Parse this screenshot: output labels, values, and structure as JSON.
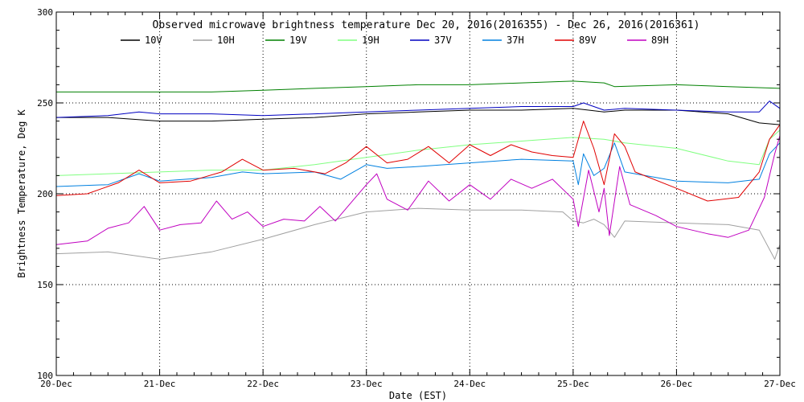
{
  "chart_data": {
    "type": "line",
    "title": "Observed microwave brightness temperature Dec 20, 2016(2016355) - Dec 26, 2016(2016361)",
    "xlabel": "Date (EST)",
    "ylabel": "Brightness Temperature, Deg K",
    "xlim": [
      0,
      7
    ],
    "ylim": [
      100,
      300
    ],
    "x_ticks": [
      {
        "value": 0,
        "label": "20-Dec"
      },
      {
        "value": 1,
        "label": "21-Dec"
      },
      {
        "value": 2,
        "label": "22-Dec"
      },
      {
        "value": 3,
        "label": "23-Dec"
      },
      {
        "value": 4,
        "label": "24-Dec"
      },
      {
        "value": 5,
        "label": "25-Dec"
      },
      {
        "value": 6,
        "label": "26-Dec"
      },
      {
        "value": 7,
        "label": "27-Dec"
      }
    ],
    "y_ticks": [
      {
        "value": 100,
        "label": "100"
      },
      {
        "value": 150,
        "label": "150"
      },
      {
        "value": 200,
        "label": "200"
      },
      {
        "value": 250,
        "label": "250"
      },
      {
        "value": 300,
        "label": "300"
      }
    ],
    "grid": "dotted",
    "legend_position": "top",
    "series": [
      {
        "name": "10V",
        "color": "#000000",
        "x": [
          0,
          0.5,
          1,
          1.5,
          2,
          2.5,
          3,
          3.5,
          4,
          4.5,
          5,
          5.3,
          5.5,
          6,
          6.5,
          6.8,
          7
        ],
        "values": [
          242,
          242,
          240,
          240,
          241,
          242,
          244,
          245,
          246,
          246,
          247,
          245,
          246,
          246,
          244,
          239,
          238
        ]
      },
      {
        "name": "10H",
        "color": "#a0a0a0",
        "x": [
          0,
          0.5,
          1,
          1.5,
          2,
          2.5,
          3,
          3.5,
          4,
          4.5,
          4.9,
          5.0,
          5.1,
          5.2,
          5.3,
          5.4,
          5.5,
          6,
          6.5,
          6.8,
          6.95,
          7
        ],
        "values": [
          167,
          168,
          164,
          168,
          175,
          183,
          190,
          192,
          191,
          191,
          190,
          185,
          184,
          186,
          183,
          176,
          185,
          184,
          183,
          180,
          164,
          172
        ]
      },
      {
        "name": "19V",
        "color": "#008000",
        "x": [
          0,
          0.5,
          1,
          1.5,
          2,
          2.5,
          3,
          3.5,
          4,
          4.5,
          5,
          5.3,
          5.4,
          6,
          6.5,
          7
        ],
        "values": [
          256,
          256,
          256,
          256,
          257,
          258,
          259,
          260,
          260,
          261,
          262,
          261,
          259,
          260,
          259,
          258
        ]
      },
      {
        "name": "19H",
        "color": "#80ff80",
        "x": [
          0,
          0.5,
          1,
          1.5,
          2,
          2.5,
          3,
          3.5,
          4,
          4.5,
          5,
          5.3,
          5.5,
          6,
          6.5,
          6.8,
          6.9,
          7
        ],
        "values": [
          210,
          211,
          212,
          213,
          213,
          216,
          220,
          224,
          227,
          229,
          231,
          230,
          228,
          225,
          218,
          216,
          230,
          235
        ]
      },
      {
        "name": "37V",
        "color": "#0000c0",
        "x": [
          0,
          0.5,
          0.8,
          1,
          1.5,
          2,
          2.5,
          3,
          3.5,
          4,
          4.5,
          5,
          5.1,
          5.3,
          5.5,
          6,
          6.5,
          6.8,
          6.9,
          7
        ],
        "values": [
          242,
          243,
          245,
          244,
          244,
          243,
          244,
          245,
          246,
          247,
          248,
          248,
          250,
          246,
          247,
          246,
          245,
          245,
          251,
          247
        ]
      },
      {
        "name": "37H",
        "color": "#0080e0",
        "x": [
          0,
          0.5,
          0.8,
          1,
          1.5,
          1.8,
          2,
          2.5,
          2.75,
          3,
          3.2,
          3.5,
          4,
          4.5,
          5,
          5.05,
          5.1,
          5.2,
          5.3,
          5.4,
          5.5,
          6,
          6.5,
          6.8,
          6.9,
          7
        ],
        "values": [
          204,
          205,
          211,
          207,
          209,
          212,
          211,
          212,
          208,
          216,
          214,
          215,
          217,
          219,
          218,
          205,
          222,
          210,
          214,
          228,
          212,
          207,
          206,
          208,
          222,
          228
        ]
      },
      {
        "name": "89V",
        "color": "#e00000",
        "x": [
          0,
          0.3,
          0.6,
          0.8,
          1,
          1.3,
          1.6,
          1.8,
          2,
          2.3,
          2.6,
          2.8,
          3,
          3.2,
          3.4,
          3.6,
          3.8,
          4,
          4.2,
          4.4,
          4.6,
          4.8,
          5,
          5.1,
          5.2,
          5.3,
          5.4,
          5.5,
          5.6,
          6,
          6.3,
          6.6,
          6.8,
          6.9,
          7
        ],
        "values": [
          199,
          200,
          206,
          213,
          206,
          207,
          212,
          219,
          213,
          214,
          211,
          217,
          226,
          217,
          219,
          226,
          217,
          227,
          221,
          227,
          223,
          221,
          220,
          240,
          225,
          205,
          233,
          226,
          212,
          203,
          196,
          198,
          212,
          230,
          238
        ]
      },
      {
        "name": "89H",
        "color": "#c000c0",
        "x": [
          0,
          0.3,
          0.5,
          0.7,
          0.85,
          1,
          1.2,
          1.4,
          1.55,
          1.7,
          1.85,
          2,
          2.2,
          2.4,
          2.55,
          2.7,
          2.85,
          3,
          3.1,
          3.2,
          3.4,
          3.6,
          3.8,
          4,
          4.2,
          4.4,
          4.6,
          4.8,
          5,
          5.05,
          5.15,
          5.25,
          5.3,
          5.35,
          5.45,
          5.55,
          5.8,
          6,
          6.3,
          6.5,
          6.7,
          6.85,
          6.95,
          7
        ],
        "values": [
          172,
          174,
          181,
          184,
          193,
          180,
          183,
          184,
          196,
          186,
          190,
          182,
          186,
          185,
          193,
          185,
          195,
          205,
          211,
          197,
          191,
          207,
          196,
          205,
          197,
          208,
          203,
          208,
          197,
          182,
          213,
          190,
          203,
          177,
          215,
          194,
          188,
          182,
          178,
          176,
          180,
          198,
          222,
          232
        ]
      }
    ]
  }
}
